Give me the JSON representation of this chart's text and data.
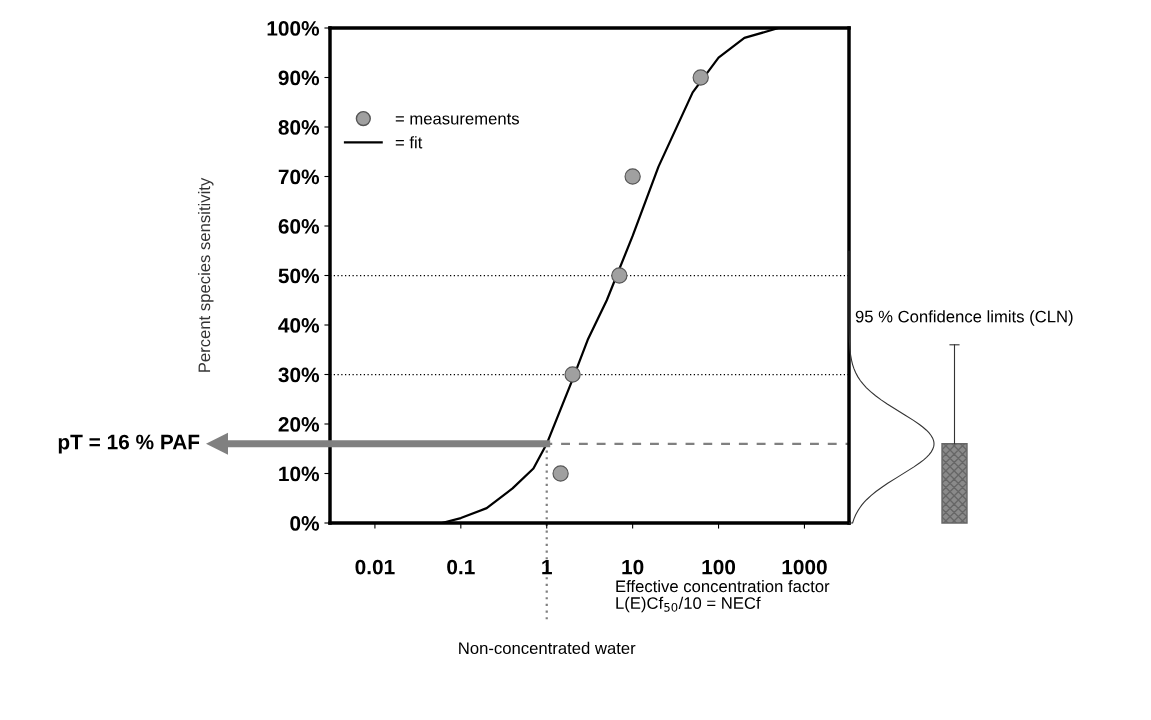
{
  "chart_data": {
    "type": "scatter",
    "ylabel": "Percent species sensitivity",
    "xlabel": "Effective concentration factor\nL(E)Cf$_{50}$/10 = NECf",
    "log": "x",
    "xlim": [
      0.003,
      3300
    ],
    "ylim": [
      0,
      100
    ],
    "xticks": [
      {
        "value": 0.01,
        "label": "0.01"
      },
      {
        "value": 0.1,
        "label": "0.1"
      },
      {
        "value": 1,
        "label": "1"
      },
      {
        "value": 10,
        "label": "10"
      },
      {
        "value": 100,
        "label": "100"
      },
      {
        "value": 1000,
        "label": "1000"
      }
    ],
    "yticks": [
      {
        "value": 0,
        "label": "0%"
      },
      {
        "value": 10,
        "label": "10%"
      },
      {
        "value": 20,
        "label": "20%"
      },
      {
        "value": 30,
        "label": "30%"
      },
      {
        "value": 40,
        "label": "40%"
      },
      {
        "value": 50,
        "label": "50%"
      },
      {
        "value": 60,
        "label": "60%"
      },
      {
        "value": 70,
        "label": "70%"
      },
      {
        "value": 80,
        "label": "80%"
      },
      {
        "value": 90,
        "label": "90%"
      },
      {
        "value": 100,
        "label": "100%"
      }
    ],
    "series": [
      {
        "name": "= measurements",
        "color": "#a0a0a0",
        "marker": "circle",
        "x": [
          1.45,
          2,
          7,
          10,
          62
        ],
        "values": [
          10,
          30,
          50,
          70,
          90
        ]
      },
      {
        "name": "= fit",
        "type": "line",
        "color": "#000000",
        "marker": "none",
        "line_style": "solid",
        "x": [
          0.06,
          0.1,
          0.2,
          0.4,
          0.7,
          1,
          2,
          3,
          5,
          10,
          20,
          50,
          100,
          200,
          500,
          3300
        ],
        "values": [
          0,
          1,
          3,
          7,
          11,
          16,
          29,
          37,
          45,
          58,
          72,
          87,
          94,
          98,
          100,
          100
        ]
      }
    ],
    "ref_lines": [
      {
        "axis": "y",
        "value": 50,
        "color": "#000000",
        "line_style": "dotted"
      },
      {
        "axis": "y",
        "value": 30,
        "color": "#000000",
        "line_style": "dotted"
      },
      {
        "axis": "y",
        "value": 16,
        "label": "pT = 16 % PAF",
        "color": "#808080",
        "line_style": "dashed"
      },
      {
        "axis": "x",
        "value": 1,
        "label": "Non-concentrated water",
        "color": "#808080",
        "line_style": "dotted"
      }
    ],
    "annotations": [
      "95 % Confidence limits (CLN)"
    ],
    "legend": "top left",
    "grid": false
  }
}
